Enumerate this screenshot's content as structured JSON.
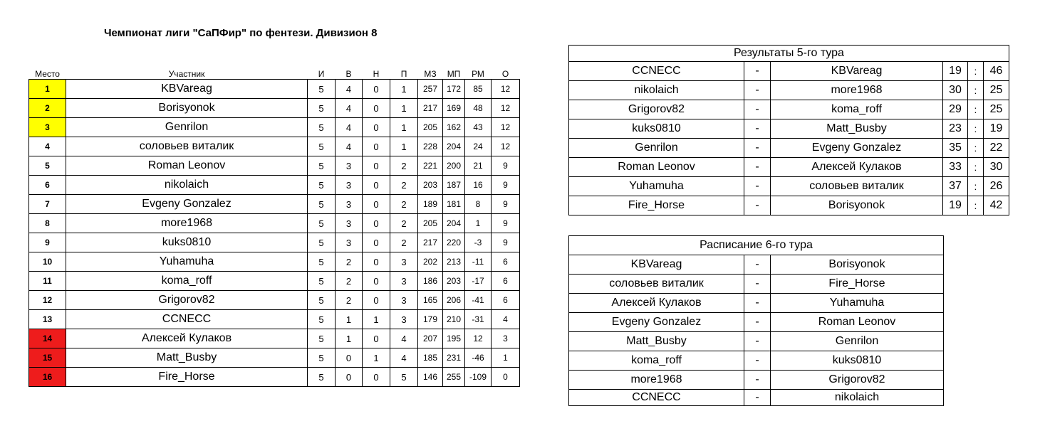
{
  "title": "Чемпионат лиги \"СаПФир\" по фентези. Дивизион 8",
  "colors": {
    "top": "#ffff00",
    "bottom": "#ee1c1c"
  },
  "standings": {
    "headers": [
      "Место",
      "Участник",
      "И",
      "В",
      "Н",
      "П",
      "МЗ",
      "МП",
      "РМ",
      "О"
    ],
    "rows": [
      [
        "1",
        "KBVareag",
        "5",
        "4",
        "0",
        "1",
        "257",
        "172",
        "85",
        "12"
      ],
      [
        "2",
        "Borisyonok",
        "5",
        "4",
        "0",
        "1",
        "217",
        "169",
        "48",
        "12"
      ],
      [
        "3",
        "Genrilon",
        "5",
        "4",
        "0",
        "1",
        "205",
        "162",
        "43",
        "12"
      ],
      [
        "4",
        "соловьев виталик",
        "5",
        "4",
        "0",
        "1",
        "228",
        "204",
        "24",
        "12"
      ],
      [
        "5",
        "Roman Leonov",
        "5",
        "3",
        "0",
        "2",
        "221",
        "200",
        "21",
        "9"
      ],
      [
        "6",
        "nikolaich",
        "5",
        "3",
        "0",
        "2",
        "203",
        "187",
        "16",
        "9"
      ],
      [
        "7",
        "Evgeny Gonzalez",
        "5",
        "3",
        "0",
        "2",
        "189",
        "181",
        "8",
        "9"
      ],
      [
        "8",
        "more1968",
        "5",
        "3",
        "0",
        "2",
        "205",
        "204",
        "1",
        "9"
      ],
      [
        "9",
        "kuks0810",
        "5",
        "3",
        "0",
        "2",
        "217",
        "220",
        "-3",
        "9"
      ],
      [
        "10",
        "Yuhamuha",
        "5",
        "2",
        "0",
        "3",
        "202",
        "213",
        "-11",
        "6"
      ],
      [
        "11",
        "koma_roff",
        "5",
        "2",
        "0",
        "3",
        "186",
        "203",
        "-17",
        "6"
      ],
      [
        "12",
        "Grigorov82",
        "5",
        "2",
        "0",
        "3",
        "165",
        "206",
        "-41",
        "6"
      ],
      [
        "13",
        "CCNECC",
        "5",
        "1",
        "1",
        "3",
        "179",
        "210",
        "-31",
        "4"
      ],
      [
        "14",
        "Алексей Кулаков",
        "5",
        "1",
        "0",
        "4",
        "207",
        "195",
        "12",
        "3"
      ],
      [
        "15",
        "Matt_Busby",
        "5",
        "0",
        "1",
        "4",
        "185",
        "231",
        "-46",
        "1"
      ],
      [
        "16",
        "Fire_Horse",
        "5",
        "0",
        "0",
        "5",
        "146",
        "255",
        "-109",
        "0"
      ]
    ]
  },
  "results": {
    "caption": "Результаты 5-го тура",
    "dash": "-",
    "colon": ":",
    "rows": [
      [
        "CCNECC",
        "KBVareag",
        "19",
        "46"
      ],
      [
        "nikolaich",
        "more1968",
        "30",
        "25"
      ],
      [
        "Grigorov82",
        "koma_roff",
        "29",
        "25"
      ],
      [
        "kuks0810",
        "Matt_Busby",
        "23",
        "19"
      ],
      [
        "Genrilon",
        "Evgeny Gonzalez",
        "35",
        "22"
      ],
      [
        "Roman Leonov",
        "Алексей Кулаков",
        "33",
        "30"
      ],
      [
        "Yuhamuha",
        "соловьев виталик",
        "37",
        "26"
      ],
      [
        "Fire_Horse",
        "Borisyonok",
        "19",
        "42"
      ]
    ]
  },
  "schedule": {
    "caption": "Расписание 6-го тура",
    "dash": "-",
    "rows": [
      [
        "KBVareag",
        "Borisyonok"
      ],
      [
        "соловьев виталик",
        "Fire_Horse"
      ],
      [
        "Алексей Кулаков",
        "Yuhamuha"
      ],
      [
        "Evgeny Gonzalez",
        "Roman Leonov"
      ],
      [
        "Matt_Busby",
        "Genrilon"
      ],
      [
        "koma_roff",
        "kuks0810"
      ],
      [
        "more1968",
        "Grigorov82"
      ],
      [
        "CCNECC",
        "nikolaich"
      ]
    ]
  }
}
